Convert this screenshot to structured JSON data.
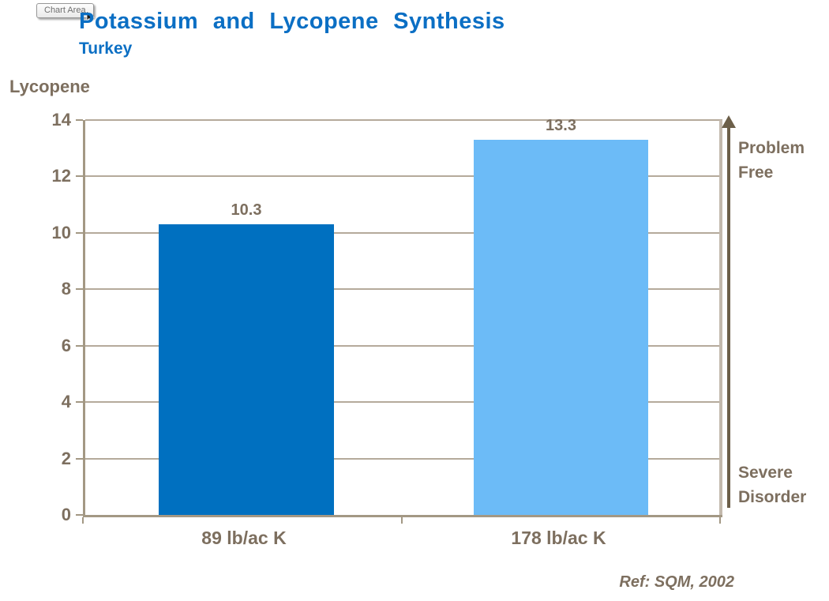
{
  "tooltip": {
    "label": "Chart Area"
  },
  "header": {
    "title": "Potassium and Lycopene Synthesis",
    "subtitle": "Turkey"
  },
  "chart_data": {
    "type": "bar",
    "title": "Potassium and Lycopene Synthesis",
    "subtitle": "Turkey",
    "ylabel": "Lycopene",
    "xlabel": "",
    "categories": [
      "89 lb/ac K",
      "178 lb/ac K"
    ],
    "values": [
      10.3,
      13.3
    ],
    "data_labels": [
      "10.3",
      "13.3"
    ],
    "bar_colors": [
      "#0070C0",
      "#6CBBF7"
    ],
    "ylim": [
      0,
      14
    ],
    "yticks": [
      0,
      2,
      4,
      6,
      8,
      10,
      12,
      14
    ],
    "grid": true,
    "legend_position": "none"
  },
  "annotations": {
    "arrow_top_label": "Problem\nFree",
    "arrow_bottom_label": "Severe\nDisorder",
    "reference": "Ref: SQM, 2002"
  },
  "colors": {
    "title_blue": "#0B6FC4",
    "bar_dark_blue": "#0070C0",
    "bar_light_blue": "#6CBBF7",
    "label_brown": "#7D6F5F",
    "gridline": "#B5AA9B",
    "axis_line": "#A39884",
    "wall_line": "#C3B9AD",
    "arrow_brown": "#6C5F49"
  }
}
